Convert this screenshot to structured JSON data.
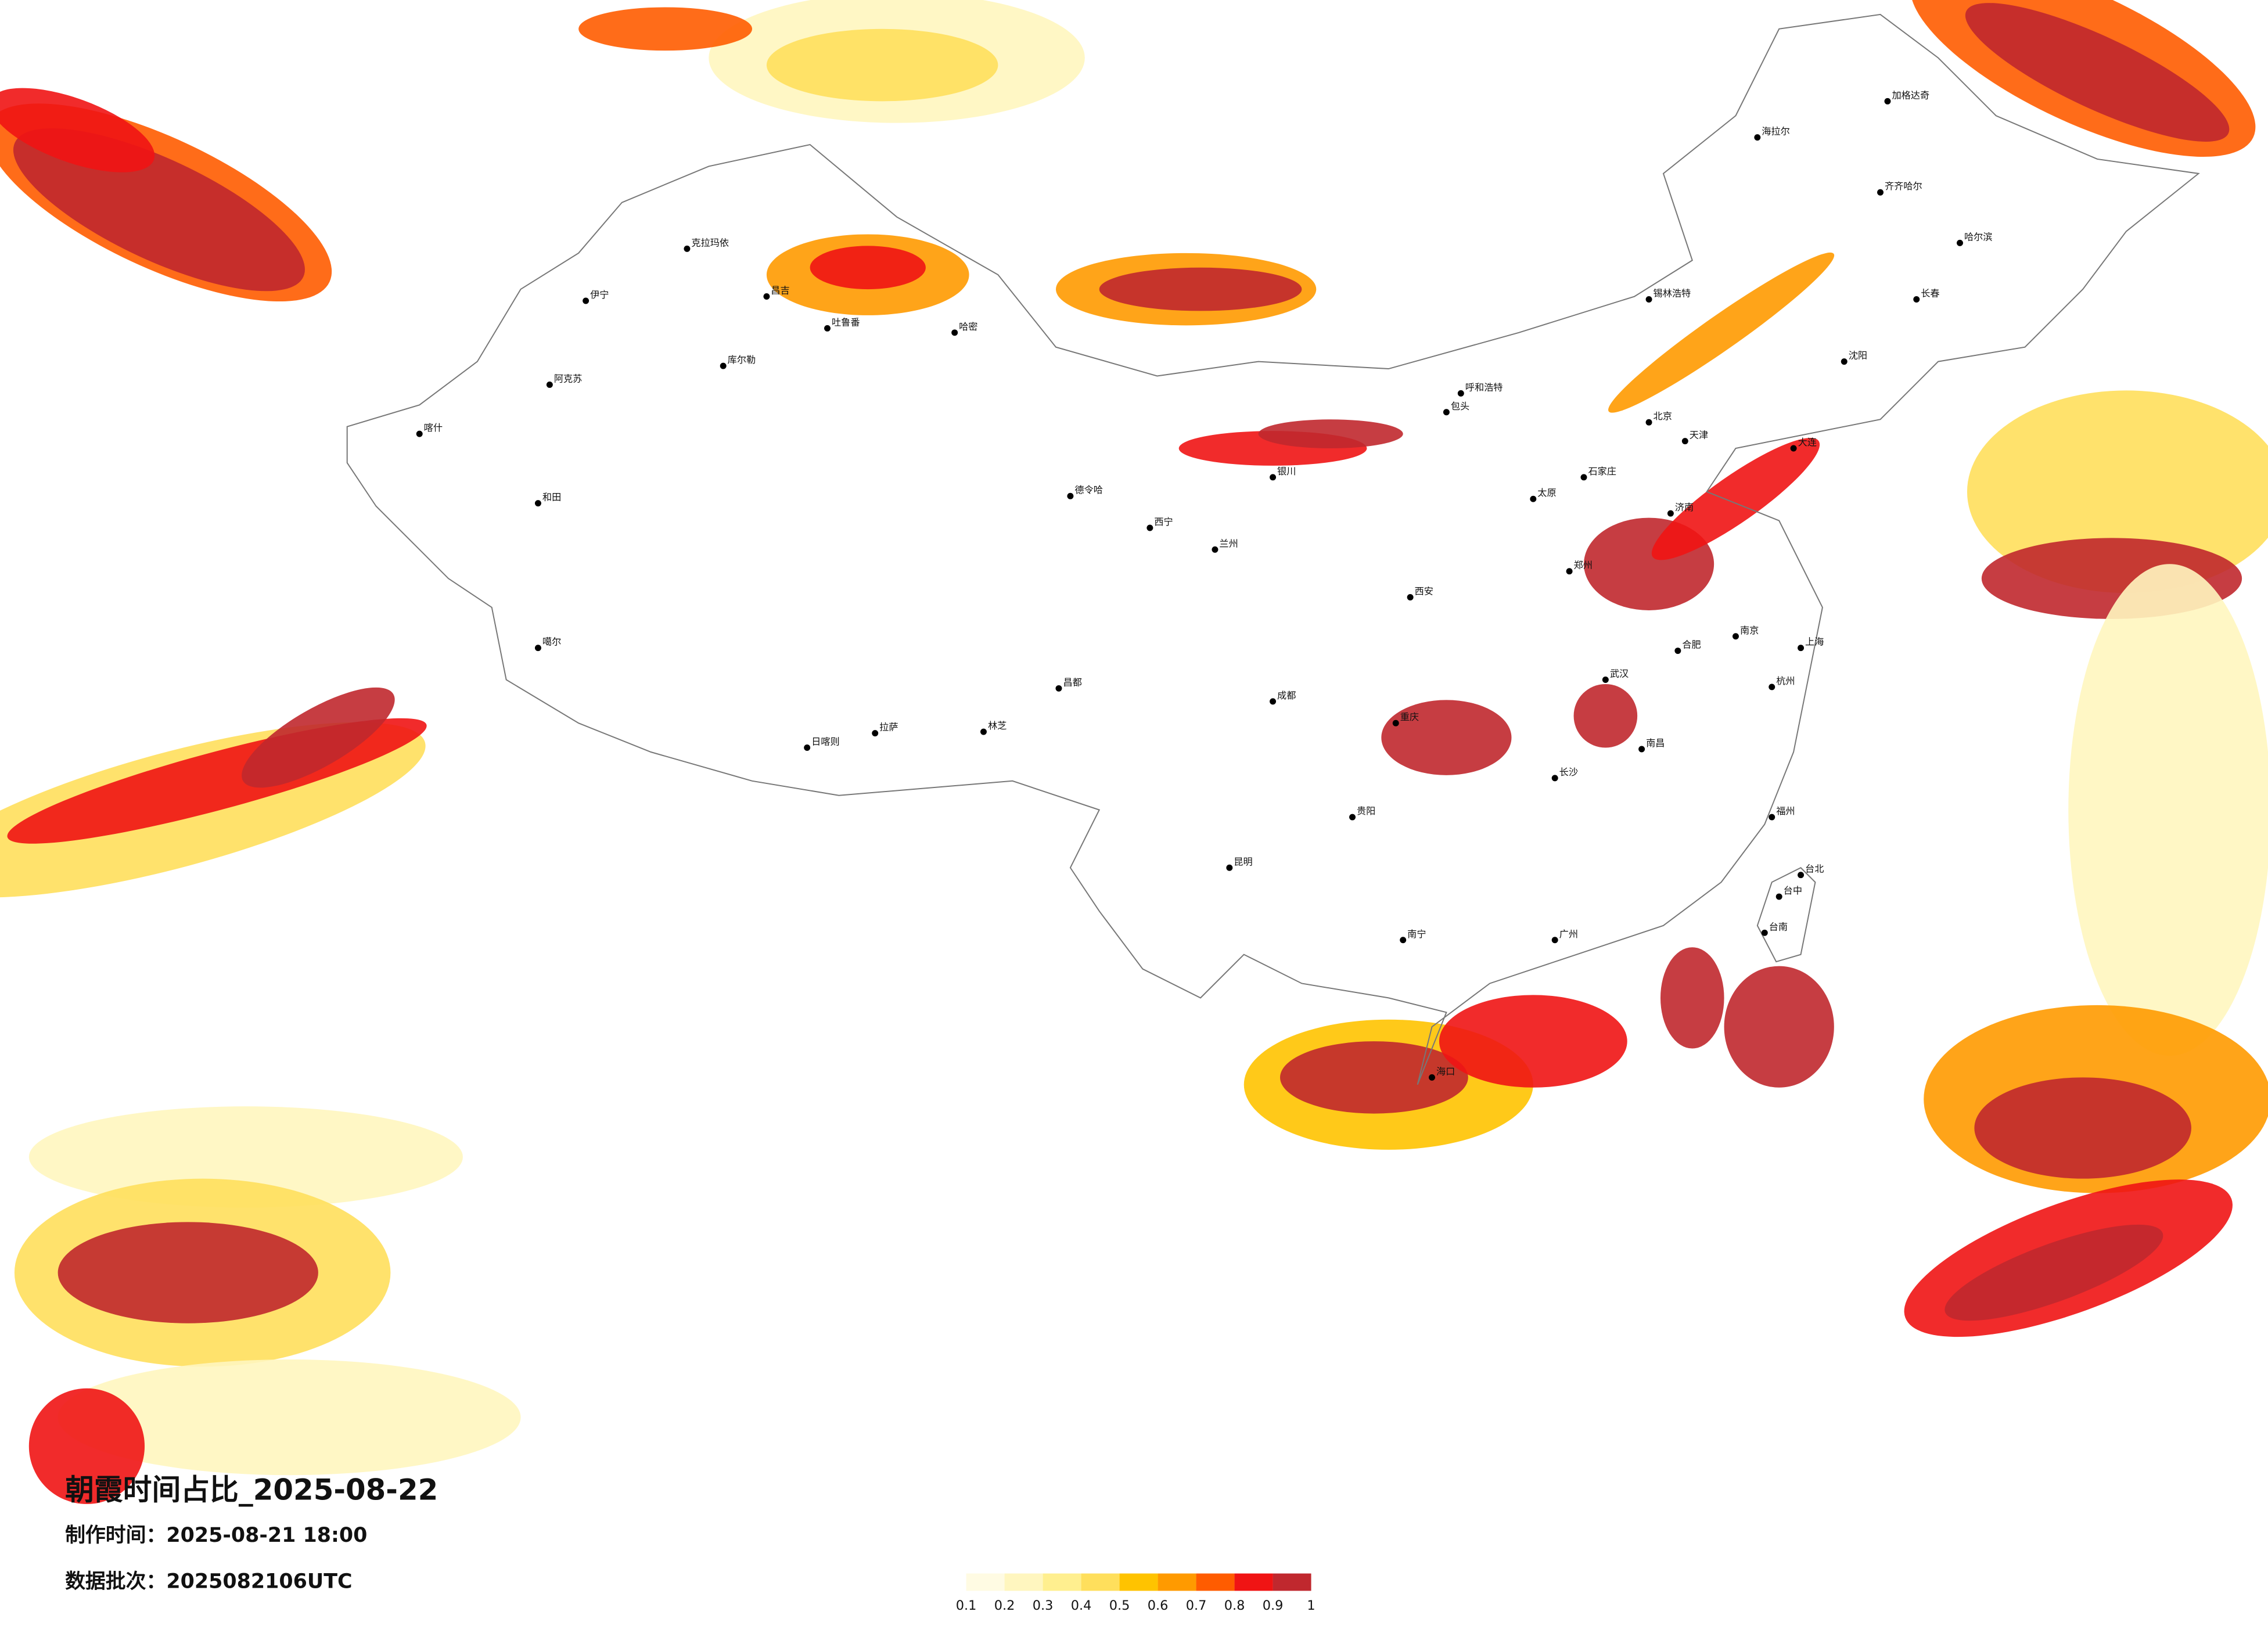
{
  "header": {
    "title": "朝霞时间占比_2025-08-22",
    "made_time": "制作时间：2025-08-21 18:00",
    "batch": "数据批次：2025082106UTC"
  },
  "legend": {
    "colors": [
      "#fffbe3",
      "#fff6bf",
      "#ffef8f",
      "#ffdf5c",
      "#ffc300",
      "#ff9a00",
      "#ff5c00",
      "#f01414",
      "#c0282e"
    ],
    "ticks": [
      0.1,
      0.2,
      0.3,
      0.4,
      0.5,
      0.6,
      0.7,
      0.8,
      0.9,
      1
    ]
  },
  "cities": [
    "克拉玛依",
    "伊宁",
    "昌吉",
    "吐鲁番",
    "哈密",
    "库尔勒",
    "阿克苏",
    "喀什",
    "和田",
    "德令哈",
    "噶尔",
    "日喀则",
    "拉萨",
    "林芝",
    "昌都",
    "西宁",
    "兰州",
    "银川",
    "包头",
    "呼和浩特",
    "锡林浩特",
    "北京",
    "天津",
    "石家庄",
    "太原",
    "济南",
    "郑州",
    "西安",
    "武汉",
    "合肥",
    "南京",
    "上海",
    "杭州",
    "长沙",
    "南昌",
    "福州",
    "广州",
    "南宁",
    "海口",
    "昆明",
    "贵阳",
    "成都",
    "重庆",
    "海拉尔",
    "加格达奇",
    "齐齐哈尔",
    "哈尔滨",
    "长春",
    "沈阳",
    "大连",
    "台北",
    "台中",
    "台南"
  ]
}
